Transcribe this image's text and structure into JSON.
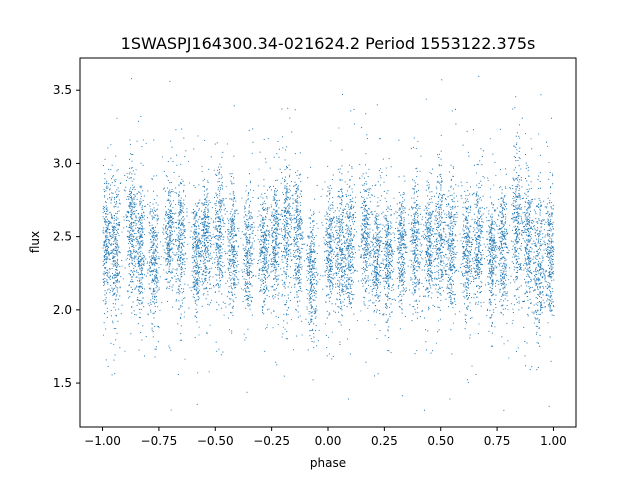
{
  "chart_data": {
    "type": "scatter",
    "title": "1SWASPJ164300.34-021624.2 Period 1553122.375s",
    "xlabel": "phase",
    "ylabel": "flux",
    "xlim": [
      -1.1,
      1.1
    ],
    "ylim": [
      1.2,
      3.72
    ],
    "grid": false,
    "legend": "none",
    "xticks": [
      -1.0,
      -0.75,
      -0.5,
      -0.25,
      0.0,
      0.25,
      0.5,
      0.75,
      1.0
    ],
    "xtick_labels": [
      "−1.00",
      "−0.75",
      "−0.50",
      "−0.25",
      "0.00",
      "0.25",
      "0.50",
      "0.75",
      "1.00"
    ],
    "yticks": [
      1.5,
      2.0,
      2.5,
      3.0,
      3.5
    ],
    "ytick_labels": [
      "1.5",
      "2.0",
      "2.5",
      "3.0",
      "3.5"
    ],
    "point_color": "#1f77b4",
    "clusters": [
      {
        "x": -0.985,
        "mean": 2.45,
        "spread": 0.22
      },
      {
        "x": -0.945,
        "mean": 2.38,
        "spread": 0.24
      },
      {
        "x": -0.875,
        "mean": 2.55,
        "spread": 0.22
      },
      {
        "x": -0.835,
        "mean": 2.42,
        "spread": 0.22
      },
      {
        "x": -0.775,
        "mean": 2.32,
        "spread": 0.22
      },
      {
        "x": -0.705,
        "mean": 2.52,
        "spread": 0.2
      },
      {
        "x": -0.655,
        "mean": 2.45,
        "spread": 0.22
      },
      {
        "x": -0.585,
        "mean": 2.36,
        "spread": 0.2
      },
      {
        "x": -0.545,
        "mean": 2.5,
        "spread": 0.2
      },
      {
        "x": -0.485,
        "mean": 2.48,
        "spread": 0.22
      },
      {
        "x": -0.425,
        "mean": 2.42,
        "spread": 0.2
      },
      {
        "x": -0.355,
        "mean": 2.4,
        "spread": 0.2
      },
      {
        "x": -0.285,
        "mean": 2.4,
        "spread": 0.2
      },
      {
        "x": -0.235,
        "mean": 2.5,
        "spread": 0.22
      },
      {
        "x": -0.185,
        "mean": 2.52,
        "spread": 0.24
      },
      {
        "x": -0.135,
        "mean": 2.48,
        "spread": 0.24
      },
      {
        "x": -0.075,
        "mean": 2.25,
        "spread": 0.22
      },
      {
        "x": 0.005,
        "mean": 2.38,
        "spread": 0.2
      },
      {
        "x": 0.055,
        "mean": 2.4,
        "spread": 0.22
      },
      {
        "x": 0.095,
        "mean": 2.45,
        "spread": 0.22
      },
      {
        "x": 0.165,
        "mean": 2.5,
        "spread": 0.22
      },
      {
        "x": 0.215,
        "mean": 2.36,
        "spread": 0.2
      },
      {
        "x": 0.265,
        "mean": 2.32,
        "spread": 0.2
      },
      {
        "x": 0.325,
        "mean": 2.42,
        "spread": 0.2
      },
      {
        "x": 0.385,
        "mean": 2.45,
        "spread": 0.22
      },
      {
        "x": 0.445,
        "mean": 2.42,
        "spread": 0.2
      },
      {
        "x": 0.495,
        "mean": 2.5,
        "spread": 0.22
      },
      {
        "x": 0.545,
        "mean": 2.45,
        "spread": 0.22
      },
      {
        "x": 0.615,
        "mean": 2.38,
        "spread": 0.22
      },
      {
        "x": 0.665,
        "mean": 2.45,
        "spread": 0.22
      },
      {
        "x": 0.725,
        "mean": 2.35,
        "spread": 0.2
      },
      {
        "x": 0.775,
        "mean": 2.42,
        "spread": 0.22
      },
      {
        "x": 0.835,
        "mean": 2.6,
        "spread": 0.26
      },
      {
        "x": 0.885,
        "mean": 2.45,
        "spread": 0.24
      },
      {
        "x": 0.935,
        "mean": 2.3,
        "spread": 0.24
      },
      {
        "x": 0.985,
        "mean": 2.4,
        "spread": 0.22
      }
    ],
    "range": {
      "x_min": -1.0,
      "x_max": 1.0,
      "y_min": 1.3,
      "y_max": 3.6
    }
  }
}
